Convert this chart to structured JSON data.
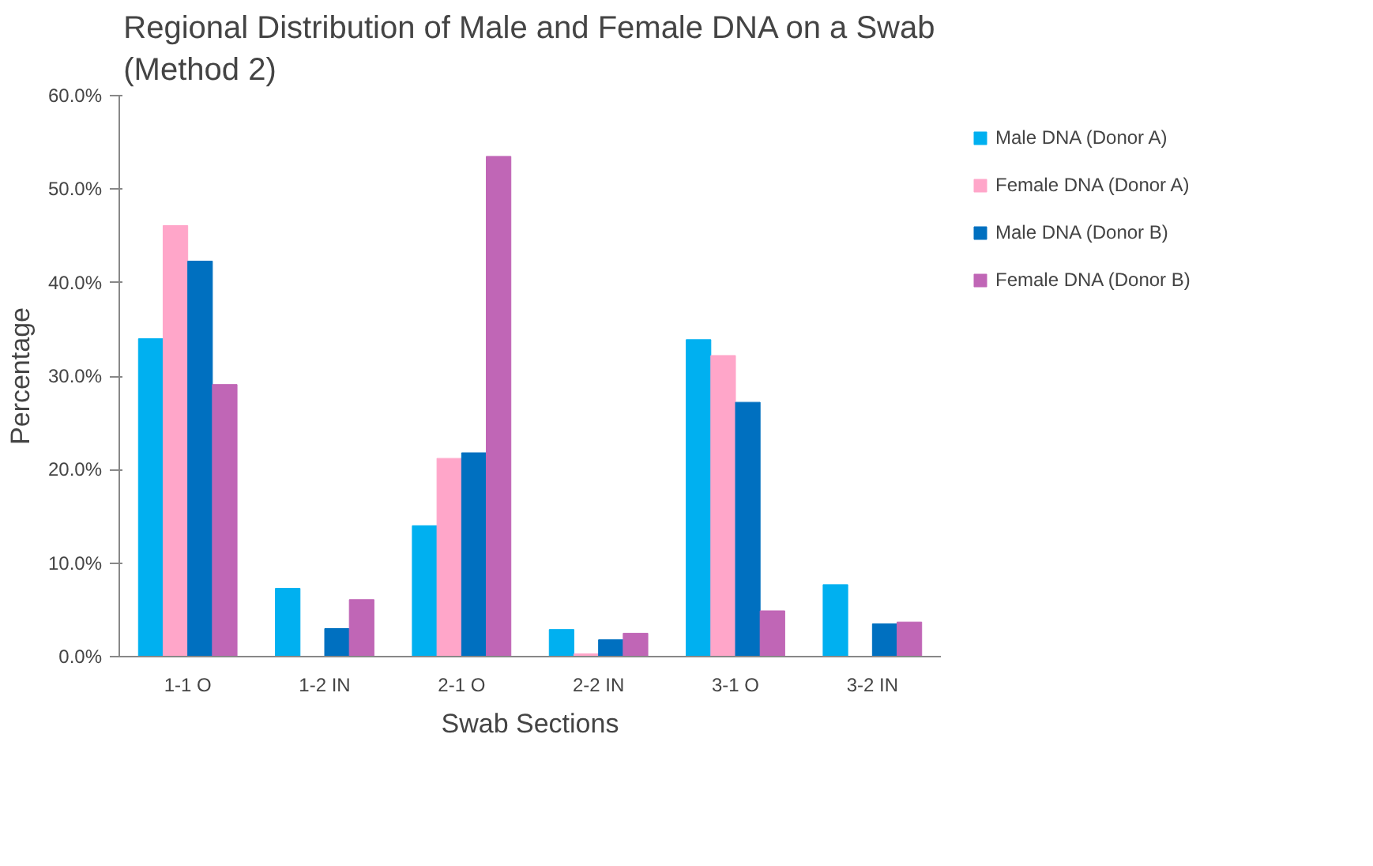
{
  "chart_data": {
    "type": "bar",
    "title": "Regional Distribution of Male and Female DNA on a Swab\n(Method 2)",
    "xlabel": "Swab Sections",
    "ylabel": "Percentage",
    "categories": [
      "1-1 O",
      "1-2 IN",
      "2-1 O",
      "2-2 IN",
      "3-1 O",
      "3-2 IN"
    ],
    "series": [
      {
        "name": "Male DNA (Donor A)",
        "color": "#00b0f0",
        "values": [
          34.0,
          7.3,
          14.0,
          2.9,
          33.9,
          7.7
        ]
      },
      {
        "name": "Female DNA (Donor A)",
        "color": "#ffa6c9",
        "values": [
          46.1,
          0,
          21.2,
          0.3,
          32.2,
          0
        ]
      },
      {
        "name": "Male DNA (Donor B)",
        "color": "#0070c0",
        "values": [
          42.3,
          3.0,
          21.8,
          1.8,
          27.2,
          3.5
        ]
      },
      {
        "name": "Female DNA (Donor B)",
        "color": "#c066b6",
        "values": [
          29.1,
          6.1,
          53.5,
          2.5,
          4.9,
          3.7
        ]
      }
    ],
    "ylim": [
      0,
      60
    ],
    "yticks": [
      {
        "value": 0,
        "label": "0.0%"
      },
      {
        "value": 10,
        "label": "10.0%"
      },
      {
        "value": 20,
        "label": "20.0%"
      },
      {
        "value": 30,
        "label": "30.0%"
      },
      {
        "value": 40,
        "label": "40.0%"
      },
      {
        "value": 50,
        "label": "50.0%"
      },
      {
        "value": 60,
        "label": "60.0%"
      }
    ],
    "grid": false,
    "legend": "right"
  }
}
